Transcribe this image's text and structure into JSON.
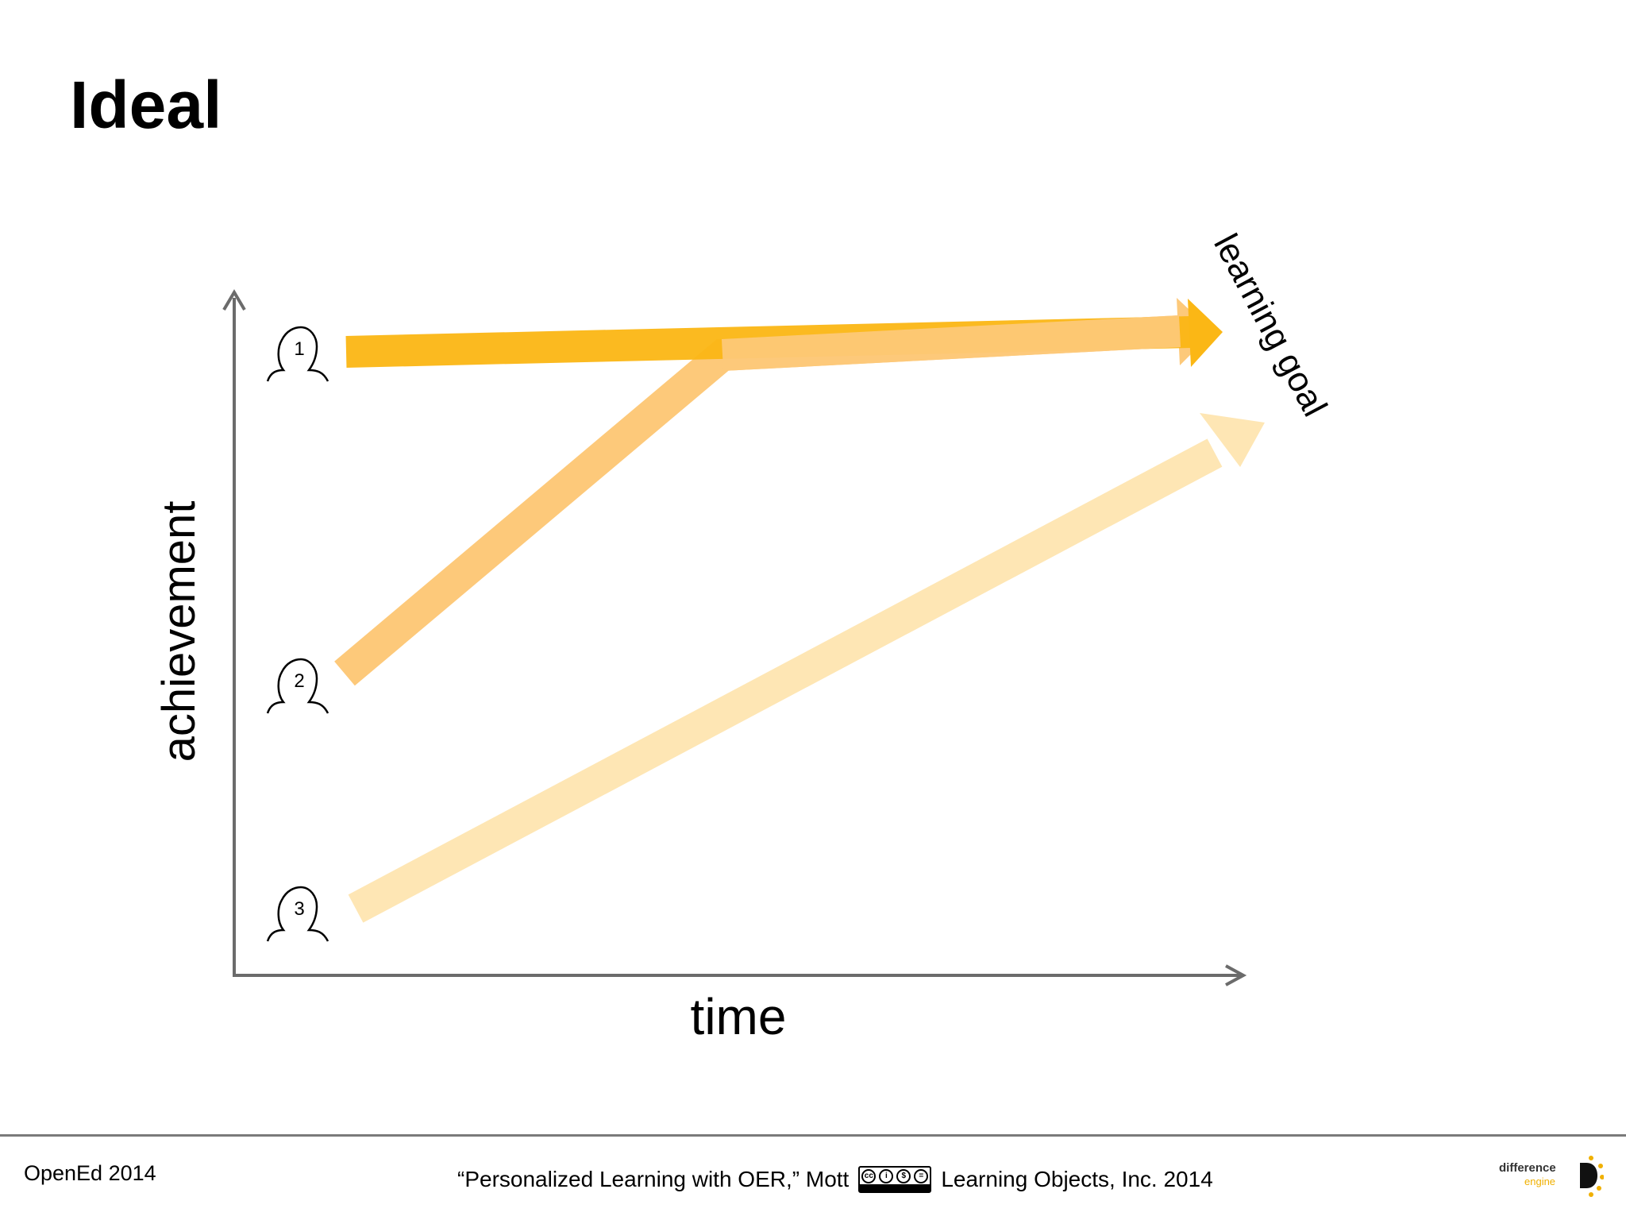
{
  "slide": {
    "title": "Ideal"
  },
  "diagram": {
    "x_axis_label": "time",
    "y_axis_label": "achievement",
    "goal_label": "learning goal",
    "learners": [
      {
        "number": "1",
        "color": "#fbb715"
      },
      {
        "number": "2",
        "color": "#fdc97a"
      },
      {
        "number": "3",
        "color": "#fee6b4"
      }
    ],
    "axis_color": "#6b6b6b"
  },
  "footer": {
    "left": "OpenEd 2014",
    "citation": "“Personalized Learning with OER,” Mott",
    "license_badge": "cc by-nc-nd",
    "publisher": "Learning Objects, Inc. 2014",
    "logo_line1": "difference",
    "logo_line2": "engine"
  }
}
